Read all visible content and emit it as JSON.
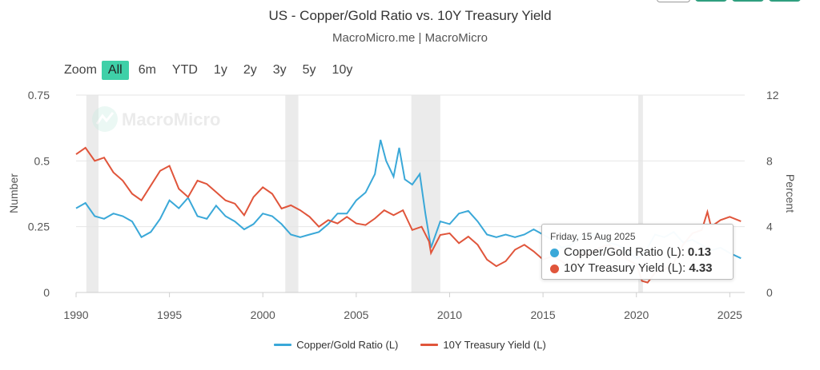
{
  "header": {
    "title": "US - Copper/Gold Ratio vs. 10Y Treasury Yield",
    "subtitle": "MacroMicro.me | MacroMicro"
  },
  "watermark": {
    "text": "MacroMicro"
  },
  "zoom": {
    "label": "Zoom",
    "buttons": [
      "All",
      "6m",
      "YTD",
      "1y",
      "2y",
      "3y",
      "5y",
      "10y"
    ],
    "active": "All"
  },
  "tooltip": {
    "date": "Friday, 15 Aug 2025",
    "rows": [
      {
        "label": "Copper/Gold Ratio (L):",
        "value": "0.13",
        "color": "#3aa8d8"
      },
      {
        "label": "10Y Treasury Yield (L):",
        "value": "4.33",
        "color": "#e0553b"
      }
    ]
  },
  "colors": {
    "copper_gold": "#3aa8d8",
    "treasury": "#e0553b",
    "recession": "#ebebeb",
    "accent": "#3fd0a8"
  },
  "chart_data": {
    "type": "line",
    "title": "US - Copper/Gold Ratio vs. 10Y Treasury Yield",
    "xlim": [
      1990,
      2025.8
    ],
    "x_ticks": [
      "1990",
      "1995",
      "2000",
      "2005",
      "2010",
      "2015",
      "2020",
      "2025"
    ],
    "left_axis": {
      "label": "Number",
      "range": [
        0,
        0.75
      ],
      "ticks": [
        "0",
        "0.25",
        "0.5",
        "0.75"
      ]
    },
    "right_axis": {
      "label": "Percent",
      "range": [
        0,
        12
      ],
      "ticks": [
        "0",
        "4",
        "8",
        "12"
      ]
    },
    "recessions": [
      [
        1990.55,
        1991.2
      ],
      [
        2001.2,
        2001.9
      ],
      [
        2007.95,
        2009.5
      ],
      [
        2020.1,
        2020.35
      ]
    ],
    "series": [
      {
        "name": "Copper/Gold Ratio (L)",
        "axis": "left",
        "x": [
          1990.0,
          1990.5,
          1991.0,
          1991.5,
          1992.0,
          1992.5,
          1993.0,
          1993.5,
          1994.0,
          1994.5,
          1995.0,
          1995.5,
          1996.0,
          1996.5,
          1997.0,
          1997.5,
          1998.0,
          1998.5,
          1999.0,
          1999.5,
          2000.0,
          2000.5,
          2001.0,
          2001.5,
          2002.0,
          2002.5,
          2003.0,
          2003.5,
          2004.0,
          2004.5,
          2005.0,
          2005.5,
          2006.0,
          2006.3,
          2006.6,
          2007.0,
          2007.3,
          2007.6,
          2008.0,
          2008.4,
          2008.7,
          2009.0,
          2009.5,
          2010.0,
          2010.5,
          2011.0,
          2011.5,
          2012.0,
          2012.5,
          2013.0,
          2013.5,
          2014.0,
          2014.5,
          2015.0,
          2015.5,
          2016.0,
          2016.5,
          2017.0,
          2017.5,
          2018.0,
          2018.5,
          2019.0,
          2019.5,
          2020.0,
          2020.3,
          2020.6,
          2021.0,
          2021.5,
          2022.0,
          2022.5,
          2023.0,
          2023.5,
          2024.0,
          2024.5,
          2025.0,
          2025.6
        ],
        "y": [
          0.32,
          0.34,
          0.29,
          0.28,
          0.3,
          0.29,
          0.27,
          0.21,
          0.23,
          0.28,
          0.35,
          0.32,
          0.36,
          0.29,
          0.28,
          0.33,
          0.29,
          0.27,
          0.24,
          0.26,
          0.3,
          0.29,
          0.26,
          0.22,
          0.21,
          0.22,
          0.23,
          0.26,
          0.3,
          0.3,
          0.35,
          0.38,
          0.45,
          0.58,
          0.5,
          0.44,
          0.55,
          0.43,
          0.41,
          0.45,
          0.3,
          0.17,
          0.27,
          0.26,
          0.3,
          0.31,
          0.27,
          0.22,
          0.21,
          0.22,
          0.21,
          0.22,
          0.24,
          0.22,
          0.2,
          0.17,
          0.18,
          0.21,
          0.22,
          0.22,
          0.19,
          0.18,
          0.16,
          0.13,
          0.14,
          0.17,
          0.22,
          0.21,
          0.23,
          0.19,
          0.2,
          0.18,
          0.16,
          0.17,
          0.15,
          0.13
        ]
      },
      {
        "name": "10Y Treasury Yield (L)",
        "axis": "right",
        "x": [
          1990.0,
          1990.5,
          1991.0,
          1991.5,
          1992.0,
          1992.5,
          1993.0,
          1993.5,
          1994.0,
          1994.5,
          1995.0,
          1995.5,
          1996.0,
          1996.5,
          1997.0,
          1997.5,
          1998.0,
          1998.5,
          1999.0,
          1999.5,
          2000.0,
          2000.5,
          2001.0,
          2001.5,
          2002.0,
          2002.5,
          2003.0,
          2003.5,
          2004.0,
          2004.5,
          2005.0,
          2005.5,
          2006.0,
          2006.5,
          2007.0,
          2007.5,
          2008.0,
          2008.5,
          2008.9,
          2009.0,
          2009.5,
          2010.0,
          2010.5,
          2011.0,
          2011.5,
          2012.0,
          2012.5,
          2013.0,
          2013.5,
          2014.0,
          2014.5,
          2015.0,
          2015.5,
          2016.0,
          2016.5,
          2017.0,
          2017.5,
          2018.0,
          2018.5,
          2019.0,
          2019.5,
          2020.0,
          2020.3,
          2020.6,
          2021.0,
          2021.5,
          2022.0,
          2022.5,
          2023.0,
          2023.5,
          2023.8,
          2024.0,
          2024.5,
          2025.0,
          2025.6
        ],
        "y": [
          8.4,
          8.8,
          8.0,
          8.2,
          7.3,
          6.8,
          6.0,
          5.6,
          6.5,
          7.4,
          7.7,
          6.3,
          5.8,
          6.8,
          6.6,
          6.1,
          5.6,
          5.4,
          4.7,
          5.8,
          6.4,
          6.0,
          5.1,
          5.3,
          5.0,
          4.6,
          4.0,
          4.4,
          4.2,
          4.6,
          4.2,
          4.1,
          4.5,
          5.0,
          4.7,
          5.0,
          3.8,
          4.0,
          3.1,
          2.4,
          3.5,
          3.6,
          3.0,
          3.4,
          2.9,
          2.0,
          1.6,
          1.9,
          2.6,
          2.9,
          2.5,
          2.0,
          2.2,
          1.9,
          1.5,
          2.4,
          2.3,
          2.7,
          2.9,
          2.6,
          2.0,
          1.7,
          0.7,
          0.6,
          1.2,
          1.4,
          1.8,
          2.9,
          3.6,
          3.8,
          4.9,
          4.0,
          4.4,
          4.6,
          4.33
        ]
      }
    ],
    "legend": {
      "position": "bottom",
      "items": [
        "Copper/Gold Ratio (L)",
        "10Y Treasury Yield (L)"
      ]
    },
    "grid": "horizontal"
  }
}
